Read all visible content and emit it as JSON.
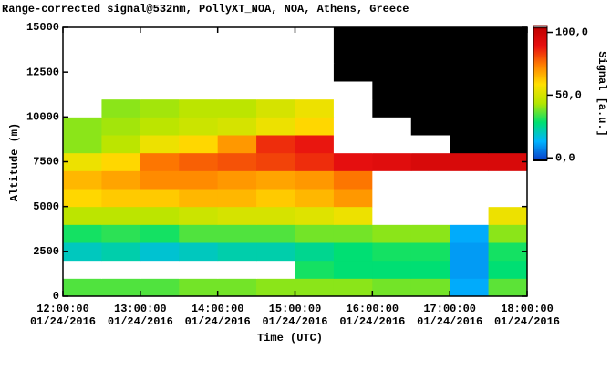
{
  "chart_data": {
    "type": "heatmap",
    "title": "Range-corrected signal@532nm, PollyXT_NOA, NOA, Athens, Greece",
    "xlabel": "Time (UTC)",
    "ylabel": "Altitude (m)",
    "colorbar_label": "Signal [a.u.]",
    "x": [
      12.25,
      12.75,
      13.25,
      13.75,
      14.25,
      14.75,
      15.25,
      15.75,
      16.25,
      16.75,
      17.25,
      17.75
    ],
    "y": [
      500,
      1500,
      2500,
      3500,
      4500,
      5500,
      6500,
      7500,
      8500,
      9500,
      10500,
      11500,
      12500,
      13500,
      14500
    ],
    "z": [
      [
        35,
        35,
        35,
        38,
        38,
        40,
        40,
        40,
        38,
        38,
        12,
        36
      ],
      [
        105,
        105,
        105,
        105,
        105,
        105,
        30,
        28,
        28,
        28,
        10,
        28
      ],
      [
        20,
        22,
        18,
        20,
        22,
        22,
        25,
        28,
        30,
        30,
        10,
        30
      ],
      [
        30,
        32,
        30,
        35,
        35,
        35,
        38,
        38,
        40,
        40,
        12,
        40
      ],
      [
        45,
        45,
        45,
        48,
        50,
        50,
        52,
        55,
        110,
        110,
        110,
        55
      ],
      [
        60,
        62,
        62,
        65,
        65,
        62,
        65,
        70,
        110,
        110,
        105,
        110
      ],
      [
        65,
        68,
        72,
        72,
        70,
        68,
        70,
        75,
        110,
        110,
        110,
        110
      ],
      [
        55,
        60,
        75,
        78,
        80,
        82,
        85,
        90,
        92,
        95,
        95,
        95
      ],
      [
        40,
        45,
        55,
        60,
        70,
        85,
        88,
        110,
        110,
        110,
        -5,
        -5
      ],
      [
        40,
        42,
        45,
        48,
        50,
        55,
        60,
        110,
        110,
        -5,
        -5,
        -5
      ],
      [
        110,
        40,
        42,
        45,
        45,
        50,
        55,
        110,
        -5,
        -5,
        -5,
        -5
      ],
      [
        110,
        110,
        110,
        110,
        110,
        110,
        110,
        110,
        -5,
        -5,
        -5,
        -5
      ],
      [
        110,
        110,
        110,
        110,
        110,
        110,
        110,
        -5,
        -5,
        -5,
        -5,
        -5
      ],
      [
        110,
        110,
        110,
        110,
        110,
        110,
        110,
        -5,
        -5,
        -5,
        -5,
        -5
      ],
      [
        110,
        110,
        110,
        110,
        110,
        110,
        110,
        -5,
        -5,
        -5,
        -5,
        -5
      ]
    ],
    "xlim": [
      12,
      18
    ],
    "ylim": [
      0,
      15000
    ],
    "xticks": [
      {
        "value": 12,
        "label": [
          "12:00:00",
          "01/24/2016"
        ]
      },
      {
        "value": 13,
        "label": [
          "13:00:00",
          "01/24/2016"
        ]
      },
      {
        "value": 14,
        "label": [
          "14:00:00",
          "01/24/2016"
        ]
      },
      {
        "value": 15,
        "label": [
          "15:00:00",
          "01/24/2016"
        ]
      },
      {
        "value": 16,
        "label": [
          "16:00:00",
          "01/24/2016"
        ]
      },
      {
        "value": 17,
        "label": [
          "17:00:00",
          "01/24/2016"
        ]
      },
      {
        "value": 18,
        "label": [
          "18:00:00",
          "01/24/2016"
        ]
      }
    ],
    "yticks": [
      0,
      2500,
      5000,
      7500,
      10000,
      12500,
      15000
    ],
    "clim": [
      -2,
      104
    ],
    "cticks": [
      {
        "value": 0,
        "label": "0,0"
      },
      {
        "value": 50,
        "label": "50,0"
      },
      {
        "value": 100,
        "label": "100,0"
      }
    ],
    "colormap": [
      "#0a3cc8",
      "#00b4ff",
      "#00e070",
      "#b4e600",
      "#ffe000",
      "#ff8000",
      "#e81010",
      "#c00000"
    ],
    "under_color": "#000000",
    "over_color": "#ffffff"
  }
}
